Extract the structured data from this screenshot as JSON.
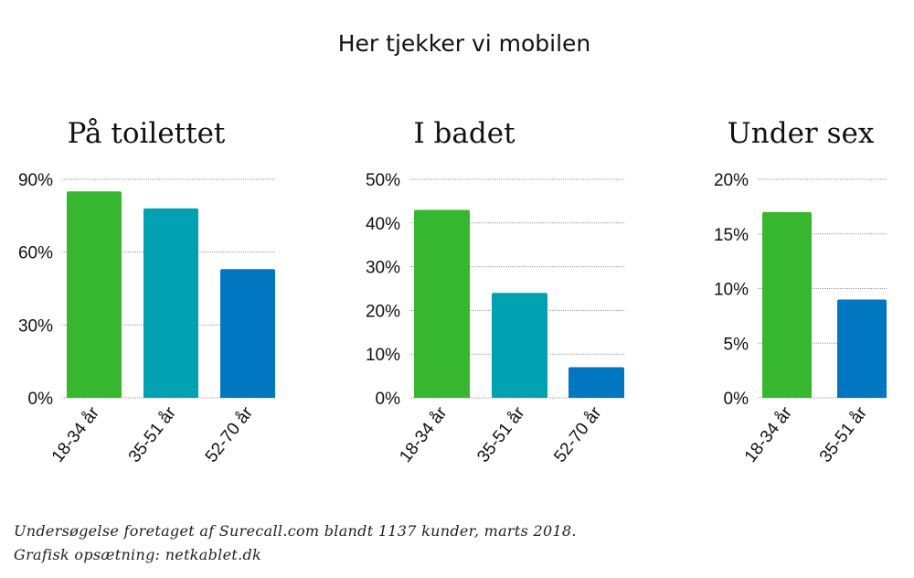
{
  "main_title": "Her tjekker vi mobilen",
  "colors": {
    "18-34 år": "#37b730",
    "35-51 år": "#00a1b0",
    "52-70 år": "#0077c0",
    "grid": "#9a9a9a",
    "text": "#111111"
  },
  "chart_data": [
    {
      "type": "bar",
      "title": "På toilettet",
      "categories": [
        "18-34 år",
        "35-51 år",
        "52-70 år"
      ],
      "values": [
        85,
        78,
        53
      ],
      "ylim": [
        0,
        90
      ],
      "yticks": [
        0,
        30,
        60,
        90
      ],
      "ytick_labels": [
        "0%",
        "30%",
        "60%",
        "90%"
      ],
      "grid": true
    },
    {
      "type": "bar",
      "title": "I badet",
      "categories": [
        "18-34 år",
        "35-51 år",
        "52-70 år"
      ],
      "values": [
        43,
        24,
        7
      ],
      "ylim": [
        0,
        50
      ],
      "yticks": [
        0,
        10,
        20,
        30,
        40,
        50
      ],
      "ytick_labels": [
        "0%",
        "10%",
        "20%",
        "30%",
        "40%",
        "50%"
      ],
      "grid": true
    },
    {
      "type": "bar",
      "title": "Under sex",
      "categories": [
        "18-34 år",
        "35-51 år"
      ],
      "values": [
        17,
        9
      ],
      "bar_colors": [
        "#37b730",
        "#0077c0"
      ],
      "ylim": [
        0,
        20
      ],
      "yticks": [
        0,
        5,
        10,
        15,
        20
      ],
      "ytick_labels": [
        "0%",
        "5%",
        "10%",
        "15%",
        "20%"
      ],
      "grid": true
    }
  ],
  "footnote": {
    "line1": "Undersøgelse foretaget af Surecall.com blandt 1137 kunder, marts 2018.",
    "line2": "Grafisk opsætning: netkablet.dk"
  }
}
